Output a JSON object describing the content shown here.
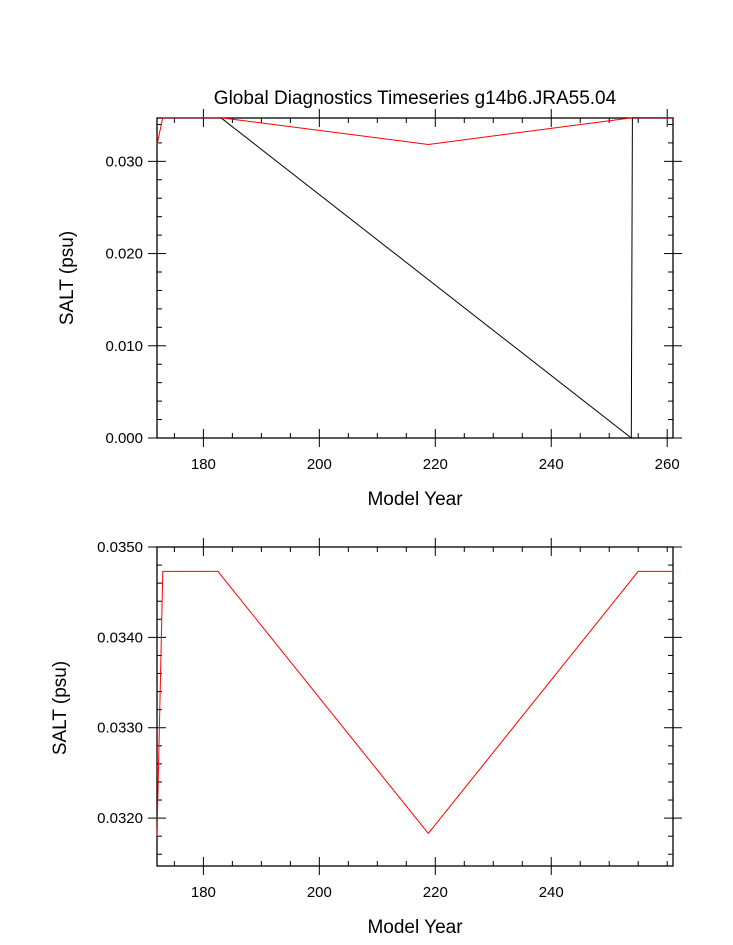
{
  "chart_data": [
    {
      "type": "line",
      "title": "Global Diagnostics Timeseries g14b6.JRA55.04",
      "xlabel": "Model Year",
      "ylabel": "SALT (psu)",
      "xlim": [
        172,
        261
      ],
      "ylim": [
        0.0,
        0.0347
      ],
      "xticks": [
        180,
        200,
        220,
        240,
        260
      ],
      "xtick_labels": [
        "180",
        "200",
        "220",
        "240",
        "260"
      ],
      "yticks": [
        0.0,
        0.01,
        0.02,
        0.03
      ],
      "ytick_labels": [
        "0.000",
        "0.010",
        "0.020",
        "0.030"
      ],
      "series": [
        {
          "name": "black",
          "color": "#000000",
          "x": [
            183,
            253.8,
            254,
            261
          ],
          "y": [
            0.03473,
            0.0,
            0.03473,
            0.03473
          ]
        },
        {
          "name": "red",
          "color": "#ff0000",
          "x": [
            172,
            173,
            183,
            218.8,
            254,
            261
          ],
          "y": [
            0.0318,
            0.03473,
            0.03473,
            0.03183,
            0.03473,
            0.03473
          ]
        }
      ]
    },
    {
      "type": "line",
      "title": "",
      "xlabel": "Model Year",
      "ylabel": "SALT (psu)",
      "xlim": [
        172,
        261
      ],
      "ylim": [
        0.03147,
        0.035
      ],
      "xticks": [
        180,
        200,
        220,
        240
      ],
      "xtick_labels": [
        "180",
        "200",
        "220",
        "240"
      ],
      "yticks": [
        0.032,
        0.033,
        0.034,
        0.035
      ],
      "ytick_labels": [
        "0.0320",
        "0.0330",
        "0.0340",
        "0.0350"
      ],
      "series": [
        {
          "name": "red",
          "color": "#ff0000",
          "x": [
            172,
            173,
            182.5,
            218.8,
            255,
            261
          ],
          "y": [
            0.0318,
            0.03473,
            0.03473,
            0.03183,
            0.03473,
            0.03473
          ]
        }
      ]
    }
  ]
}
